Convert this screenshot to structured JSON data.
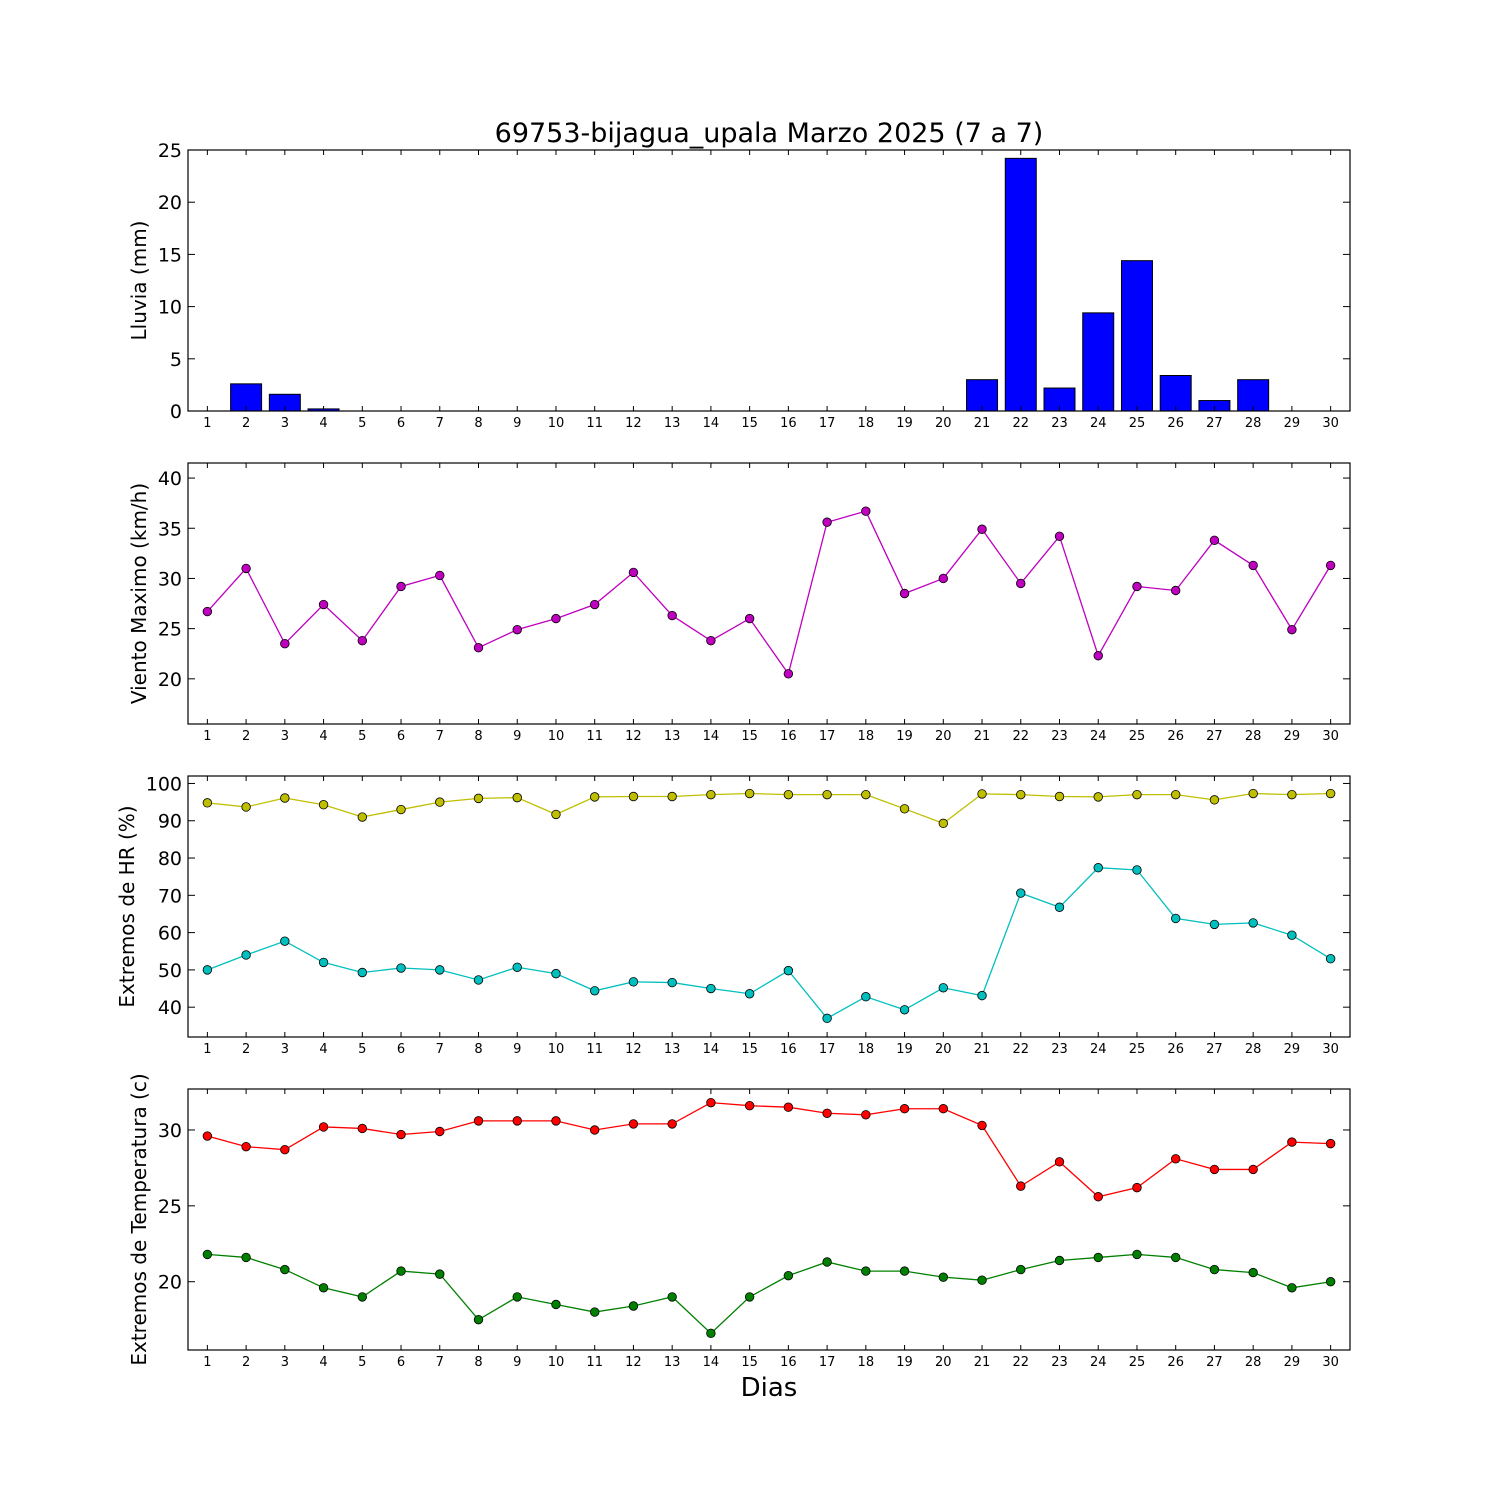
{
  "title": "69753-bijagua_upala Marzo 2025  (7 a 7)",
  "xlabel": "Dias",
  "chart_data": [
    {
      "type": "bar",
      "ylabel": "Lluvia (mm)",
      "ylim": [
        0,
        25
      ],
      "yticks": [
        0,
        5,
        10,
        15,
        20,
        25
      ],
      "xlim": [
        0.5,
        30.5
      ],
      "categories": [
        1,
        2,
        3,
        4,
        5,
        6,
        7,
        8,
        9,
        10,
        11,
        12,
        13,
        14,
        15,
        16,
        17,
        18,
        19,
        20,
        21,
        22,
        23,
        24,
        25,
        26,
        27,
        28,
        29,
        30
      ],
      "series": [
        {
          "color": "#0000ff",
          "values": [
            0,
            2.6,
            1.6,
            0.2,
            0,
            0,
            0,
            0,
            0,
            0,
            0,
            0,
            0,
            0,
            0,
            0,
            0,
            0,
            0,
            0,
            3.0,
            24.2,
            2.2,
            9.4,
            14.4,
            3.4,
            1.0,
            3.0,
            0,
            0
          ]
        }
      ]
    },
    {
      "type": "line",
      "ylabel": "Viento Maximo (km/h)",
      "ylim": [
        15.5,
        41.5
      ],
      "yticks": [
        20,
        25,
        30,
        35,
        40
      ],
      "xlim": [
        0.5,
        30.5
      ],
      "x": [
        1,
        2,
        3,
        4,
        5,
        6,
        7,
        8,
        9,
        10,
        11,
        12,
        13,
        14,
        15,
        16,
        17,
        18,
        19,
        20,
        21,
        22,
        23,
        24,
        25,
        26,
        27,
        28,
        29,
        30
      ],
      "series": [
        {
          "color": "#bf00bf",
          "values": [
            26.7,
            31.0,
            23.5,
            27.4,
            23.8,
            29.2,
            30.3,
            23.1,
            24.9,
            26.0,
            27.4,
            30.6,
            26.3,
            23.8,
            26.0,
            20.5,
            35.6,
            36.7,
            28.5,
            30.0,
            34.9,
            29.5,
            34.2,
            22.3,
            29.2,
            28.8,
            33.8,
            31.3,
            24.9,
            31.3
          ]
        }
      ]
    },
    {
      "type": "line",
      "ylabel": "Extremos de HR (%)",
      "ylim": [
        32,
        102
      ],
      "yticks": [
        40,
        50,
        60,
        70,
        80,
        90,
        100
      ],
      "xlim": [
        0.5,
        30.5
      ],
      "x": [
        1,
        2,
        3,
        4,
        5,
        6,
        7,
        8,
        9,
        10,
        11,
        12,
        13,
        14,
        15,
        16,
        17,
        18,
        19,
        20,
        21,
        22,
        23,
        24,
        25,
        26,
        27,
        28,
        29,
        30
      ],
      "series": [
        {
          "color": "#bfbf00",
          "values": [
            94.8,
            93.7,
            96.1,
            94.3,
            91.0,
            93.0,
            95.0,
            96.0,
            96.2,
            91.7,
            96.4,
            96.5,
            96.5,
            97.0,
            97.3,
            97.0,
            97.0,
            97.0,
            93.2,
            89.3,
            97.2,
            97.0,
            96.5,
            96.4,
            97.0,
            97.0,
            95.6,
            97.3,
            97.0,
            97.3
          ]
        },
        {
          "color": "#00bfbf",
          "values": [
            50.0,
            54.0,
            57.7,
            52.0,
            49.3,
            50.5,
            50.0,
            47.3,
            50.7,
            49.0,
            44.4,
            46.8,
            46.6,
            45.0,
            43.6,
            49.8,
            37.0,
            42.8,
            39.3,
            45.2,
            43.1,
            70.6,
            66.8,
            77.4,
            76.8,
            63.8,
            62.2,
            62.6,
            59.3,
            53.0
          ]
        }
      ]
    },
    {
      "type": "line",
      "ylabel": "Extremos de Temperatura (c)",
      "ylim": [
        15.5,
        32.7
      ],
      "yticks": [
        20,
        25,
        30
      ],
      "xlim": [
        0.5,
        30.5
      ],
      "x": [
        1,
        2,
        3,
        4,
        5,
        6,
        7,
        8,
        9,
        10,
        11,
        12,
        13,
        14,
        15,
        16,
        17,
        18,
        19,
        20,
        21,
        22,
        23,
        24,
        25,
        26,
        27,
        28,
        29,
        30
      ],
      "series": [
        {
          "color": "#ff0000",
          "values": [
            29.6,
            28.9,
            28.7,
            30.2,
            30.1,
            29.7,
            29.9,
            30.6,
            30.6,
            30.6,
            30.0,
            30.4,
            30.4,
            31.8,
            31.6,
            31.5,
            31.1,
            31.0,
            31.4,
            31.4,
            30.3,
            26.3,
            27.9,
            25.6,
            26.2,
            28.1,
            27.4,
            27.4,
            29.2,
            29.1
          ]
        },
        {
          "color": "#008000",
          "values": [
            21.8,
            21.6,
            20.8,
            19.6,
            19.0,
            20.7,
            20.5,
            17.5,
            19.0,
            18.5,
            18.0,
            18.4,
            19.0,
            16.6,
            19.0,
            20.4,
            21.3,
            20.7,
            20.7,
            20.3,
            20.1,
            20.8,
            21.4,
            21.6,
            21.8,
            21.6,
            20.8,
            20.6,
            19.6,
            20.0
          ]
        }
      ]
    }
  ]
}
